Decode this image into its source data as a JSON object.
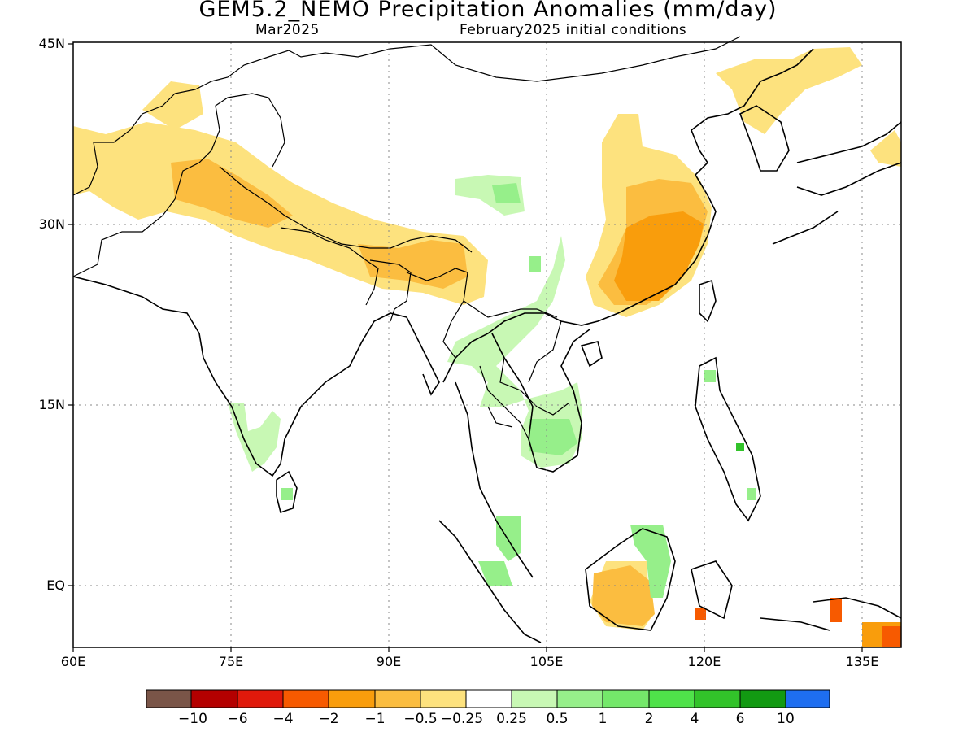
{
  "title": "GEM5.2_NEMO Precipitation Anomalies (mm/day)",
  "subtitle_left": "Mar2025",
  "subtitle_right": "February2025 initial conditions",
  "y_ticks": [
    "45N",
    "30N",
    "15N",
    "EQ"
  ],
  "x_ticks": [
    "60E",
    "75E",
    "90E",
    "105E",
    "120E",
    "135E"
  ],
  "colors": {
    "brown": "#7a5548",
    "dark_red": "#b40000",
    "red": "#e0190b",
    "orange_red": "#f75a00",
    "orange": "#f99d0c",
    "light_orange": "#fbbd40",
    "pale_yellow": "#fde27e",
    "white": "#ffffff",
    "pale_green": "#c8f8b4",
    "light_green": "#96ef8a",
    "green1": "#74e86a",
    "green2": "#4fe24a",
    "green3": "#32c32a",
    "dark_green": "#129a12",
    "blue": "#1e6ef0"
  },
  "colorbar": {
    "labels": [
      "−10",
      "−6",
      "−4",
      "−2",
      "−1",
      "−0.5",
      "−0.25",
      "0.25",
      "0.5",
      "1",
      "2",
      "4",
      "6",
      "10"
    ]
  }
}
